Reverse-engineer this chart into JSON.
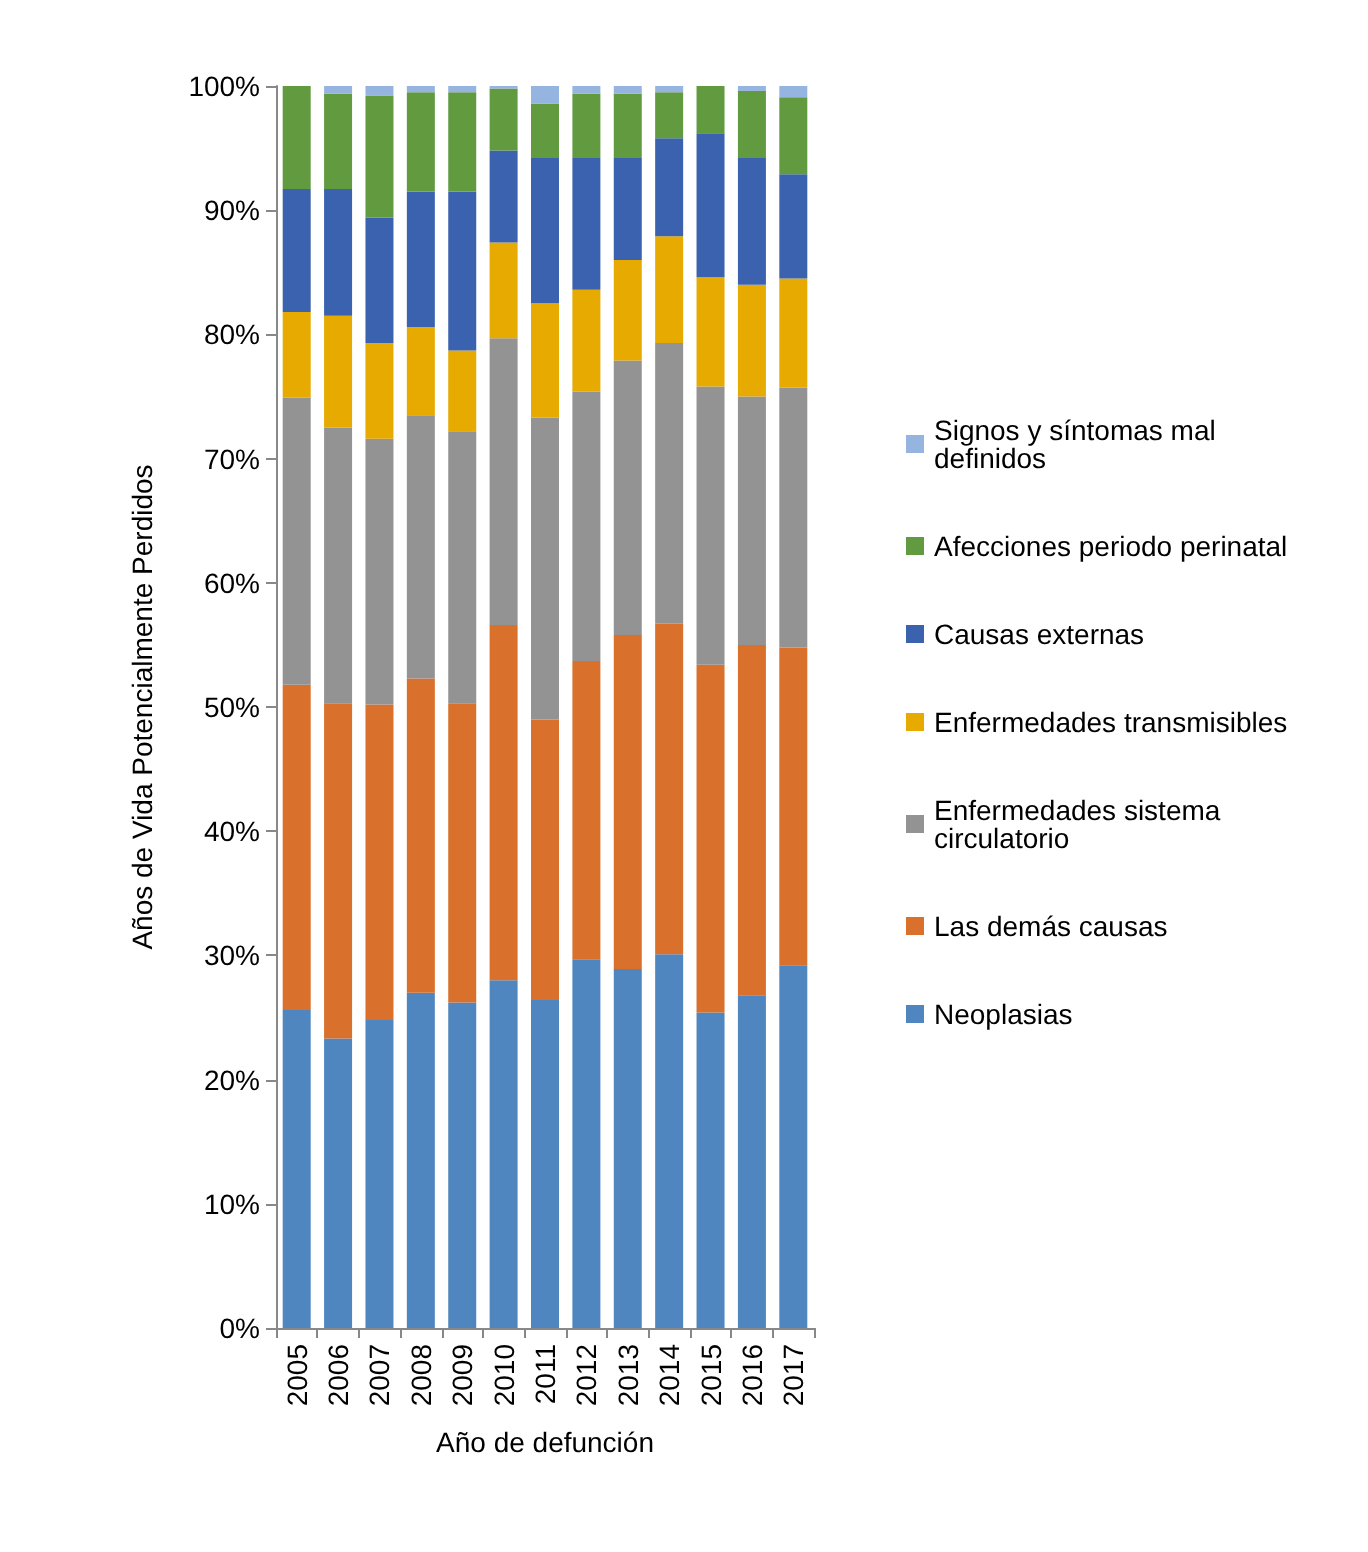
{
  "chart_data": {
    "type": "bar",
    "stacked": true,
    "xlabel": "Año de defunción",
    "ylabel": "Años de Vida Potencialmente Perdidos",
    "categories": [
      "2005",
      "2006",
      "2007",
      "2008",
      "2009",
      "2010",
      "2011",
      "2012",
      "2013",
      "2014",
      "2015",
      "2016",
      "2017"
    ],
    "series": [
      {
        "name": "Neoplasias",
        "color": "#4f86c0",
        "values": [
          25.6,
          23.3,
          24.8,
          27.0,
          26.2,
          28.0,
          26.4,
          29.7,
          28.9,
          30.1,
          25.4,
          26.8,
          29.2
        ]
      },
      {
        "name": "Las demás causas",
        "color": "#d9702b",
        "values": [
          26.2,
          27.0,
          25.4,
          25.3,
          24.1,
          28.6,
          22.6,
          24.0,
          26.9,
          26.6,
          28.0,
          28.2,
          25.6
        ]
      },
      {
        "name": "Enfermedades sistema circulatorio",
        "color": "#939393",
        "values": [
          23.1,
          22.2,
          21.4,
          21.2,
          21.9,
          23.1,
          24.3,
          21.7,
          22.1,
          22.6,
          22.4,
          20.0,
          20.9
        ]
      },
      {
        "name": "Enfermedades transmisibles",
        "color": "#e6aa00",
        "values": [
          6.9,
          9.0,
          7.7,
          7.1,
          6.5,
          7.7,
          9.2,
          8.2,
          8.1,
          8.6,
          8.8,
          9.0,
          8.8
        ]
      },
      {
        "name": "Causas externas",
        "color": "#3b62ae",
        "values": [
          9.9,
          10.2,
          10.1,
          10.9,
          12.8,
          7.4,
          11.7,
          10.6,
          8.2,
          7.9,
          11.6,
          10.2,
          8.4
        ]
      },
      {
        "name": "Afecciones periodo perinatal",
        "color": "#629a40",
        "values": [
          8.3,
          7.7,
          9.8,
          8.0,
          8.0,
          5.0,
          4.4,
          5.2,
          5.2,
          3.7,
          3.8,
          5.4,
          6.2
        ]
      },
      {
        "name": "Signos y síntomas mal definidos",
        "color": "#95b5e0",
        "values": [
          0,
          0.6,
          0.8,
          0.5,
          0.5,
          0.2,
          1.4,
          0.6,
          0.6,
          0.5,
          0,
          0.4,
          0.9
        ]
      }
    ],
    "ylim": [
      0,
      100
    ],
    "yticks": [
      {
        "value": 0,
        "label": "0%"
      },
      {
        "value": 10,
        "label": "10%"
      },
      {
        "value": 20,
        "label": "20%"
      },
      {
        "value": 30,
        "label": "30%"
      },
      {
        "value": 40,
        "label": "40%"
      },
      {
        "value": 50,
        "label": "50%"
      },
      {
        "value": 60,
        "label": "60%"
      },
      {
        "value": 70,
        "label": "70%"
      },
      {
        "value": 80,
        "label": "80%"
      },
      {
        "value": 90,
        "label": "90%"
      },
      {
        "value": 100,
        "label": "100%"
      }
    ],
    "grid": false,
    "legend": "right"
  }
}
